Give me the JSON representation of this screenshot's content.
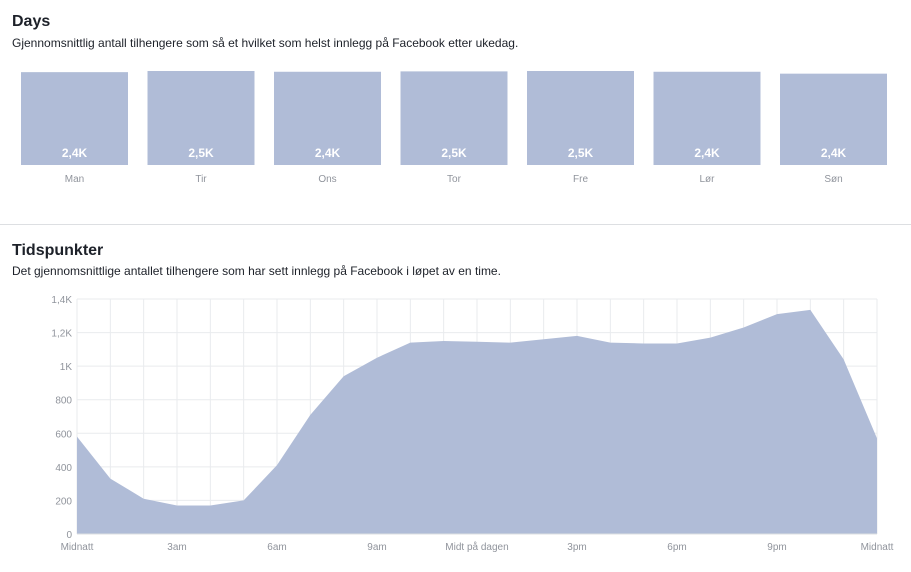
{
  "days_section": {
    "title": "Days",
    "subtitle": "Gjennomsnittlig antall tilhengere som så et hvilket som helst innlegg på Facebook etter ukedag."
  },
  "times_section": {
    "title": "Tidspunkter",
    "subtitle": "Det gjennomsnittlige antallet tilhengere som har sett innlegg på Facebook i løpet av en time."
  },
  "colors": {
    "bar_fill": "#b0bcd7",
    "area_fill": "#b0bcd7",
    "grid": "#e9ebee",
    "axis_text": "#90949c",
    "bar_label": "#ffffff"
  },
  "chart_data": [
    {
      "type": "bar",
      "title": "Days",
      "categories": [
        "Man",
        "Tir",
        "Ons",
        "Tor",
        "Fre",
        "Lør",
        "Søn"
      ],
      "values": [
        2.44,
        2.47,
        2.45,
        2.46,
        2.47,
        2.45,
        2.4
      ],
      "value_labels": [
        "2,4K",
        "2,5K",
        "2,4K",
        "2,5K",
        "2,5K",
        "2,4K",
        "2,4K"
      ],
      "unit": "K",
      "ylim": [
        0,
        2.47
      ]
    },
    {
      "type": "area",
      "title": "Tidspunkter",
      "x": [
        0,
        1,
        2,
        3,
        4,
        5,
        6,
        7,
        8,
        9,
        10,
        11,
        12,
        13,
        14,
        15,
        16,
        17,
        18,
        19,
        20,
        21,
        22,
        23,
        24
      ],
      "values": [
        580,
        330,
        210,
        170,
        170,
        200,
        410,
        710,
        940,
        1050,
        1140,
        1150,
        1145,
        1140,
        1160,
        1180,
        1140,
        1135,
        1135,
        1170,
        1230,
        1310,
        1335,
        1040,
        570
      ],
      "ylim": [
        0,
        1400
      ],
      "y_ticks": [
        0,
        200,
        400,
        600,
        800,
        1000,
        1200,
        1400
      ],
      "y_tick_labels": [
        "0",
        "200",
        "400",
        "600",
        "800",
        "1K",
        "1,2K",
        "1,4K"
      ],
      "x_ticks": [
        0,
        3,
        6,
        9,
        12,
        15,
        18,
        21,
        24
      ],
      "x_tick_labels": [
        "Midnatt",
        "3am",
        "6am",
        "9am",
        "Midt på dagen",
        "3pm",
        "6pm",
        "9pm",
        "Midnatt"
      ],
      "grid": true
    }
  ]
}
